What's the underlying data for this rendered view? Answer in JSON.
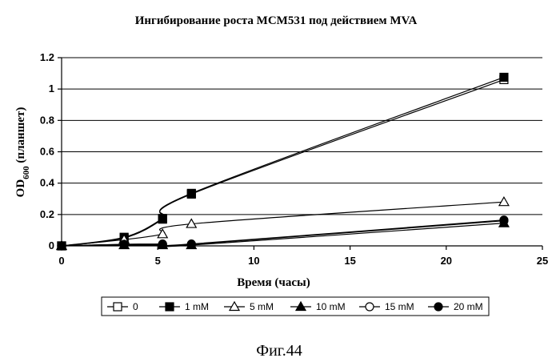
{
  "chart_data": {
    "type": "line",
    "title": "Ингибирование роста MCM531 под действием MVA",
    "xlabel": "Время (часы)",
    "ylabel_main": "OD",
    "ylabel_sub": "600",
    "ylabel_rest": " (планшет)",
    "xlim": [
      0,
      25
    ],
    "ylim": [
      0,
      1.2
    ],
    "xticks": [
      0,
      5,
      10,
      15,
      20,
      25
    ],
    "yticks": [
      0,
      0.2,
      0.4,
      0.6,
      0.8,
      1,
      1.2
    ],
    "xtick_labels": [
      "0",
      "5",
      "10",
      "15",
      "20",
      "25"
    ],
    "ytick_labels": [
      "0",
      "0.2",
      "0.4",
      "0.6",
      "0.8",
      "1",
      "1.2"
    ],
    "grid": "horizontal",
    "legend_position": "bottom",
    "series": [
      {
        "name": "0",
        "marker": "square-open",
        "x": [
          0,
          3.25,
          5.25,
          6.75,
          23
        ],
        "y": [
          0,
          0.05,
          0.17,
          0.33,
          1.06
        ]
      },
      {
        "name": "1 mM",
        "marker": "square-filled",
        "x": [
          0,
          3.25,
          5.25,
          6.75,
          23
        ],
        "y": [
          0,
          0.055,
          0.175,
          0.335,
          1.075
        ]
      },
      {
        "name": "5 mM",
        "marker": "triangle-open",
        "x": [
          0,
          3.25,
          5.25,
          6.75,
          23
        ],
        "y": [
          0,
          0.04,
          0.075,
          0.14,
          0.28
        ]
      },
      {
        "name": "10 mM",
        "marker": "triangle-filled",
        "x": [
          0,
          3.25,
          5.25,
          6.75,
          23
        ],
        "y": [
          0,
          0.005,
          0.005,
          0.005,
          0.145
        ]
      },
      {
        "name": "15 mM",
        "marker": "circle-open",
        "x": [
          0,
          3.25,
          5.25,
          6.75,
          23
        ],
        "y": [
          0,
          0.01,
          0.01,
          0.01,
          0.16
        ]
      },
      {
        "name": "20 mM",
        "marker": "circle-filled",
        "x": [
          0,
          3.25,
          5.25,
          6.75,
          23
        ],
        "y": [
          0,
          0.01,
          0.012,
          0.012,
          0.165
        ]
      }
    ]
  },
  "caption": "Фиг.44"
}
